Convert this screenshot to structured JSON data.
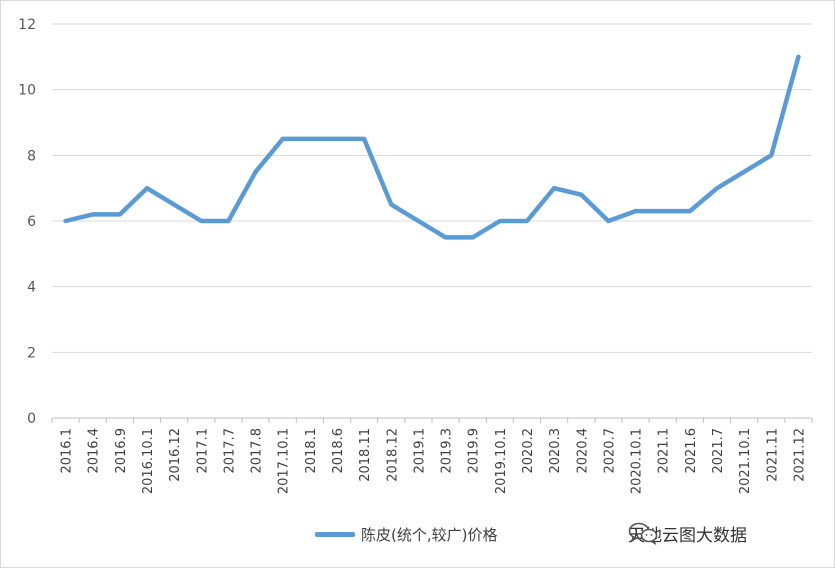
{
  "chart_data": {
    "type": "line",
    "title": "",
    "xlabel": "",
    "ylabel": "",
    "ylim": [
      0,
      12
    ],
    "yticks": [
      0,
      2,
      4,
      6,
      8,
      10,
      12
    ],
    "grid": true,
    "legend_position": "bottom",
    "categories": [
      "2016.1",
      "2016.4",
      "2016.9",
      "2016.10.1",
      "2016.12",
      "2017.1",
      "2017.7",
      "2017.8",
      "2017.10.1",
      "2018.1",
      "2018.6",
      "2018.11",
      "2018.12",
      "2019.1",
      "2019.3",
      "2019.9",
      "2019.10.1",
      "2020.2",
      "2020.3",
      "2020.4",
      "2020.7",
      "2020.10.1",
      "2021.1",
      "2021.6",
      "2021.7",
      "2021.10.1",
      "2021.11",
      "2021.12"
    ],
    "series": [
      {
        "name": "陈皮(统个,较广)价格",
        "color": "#5b9bd5",
        "values": [
          6,
          6.2,
          6.2,
          7,
          6.5,
          6,
          6,
          7.5,
          8.5,
          8.5,
          8.5,
          8.5,
          6.5,
          6,
          5.5,
          5.5,
          6,
          6,
          7,
          6.8,
          6,
          6.3,
          6.3,
          6.3,
          7,
          7.5,
          8,
          11
        ]
      }
    ]
  },
  "watermark": {
    "icon": "wechat-icon",
    "text": "天地云图大数据"
  }
}
